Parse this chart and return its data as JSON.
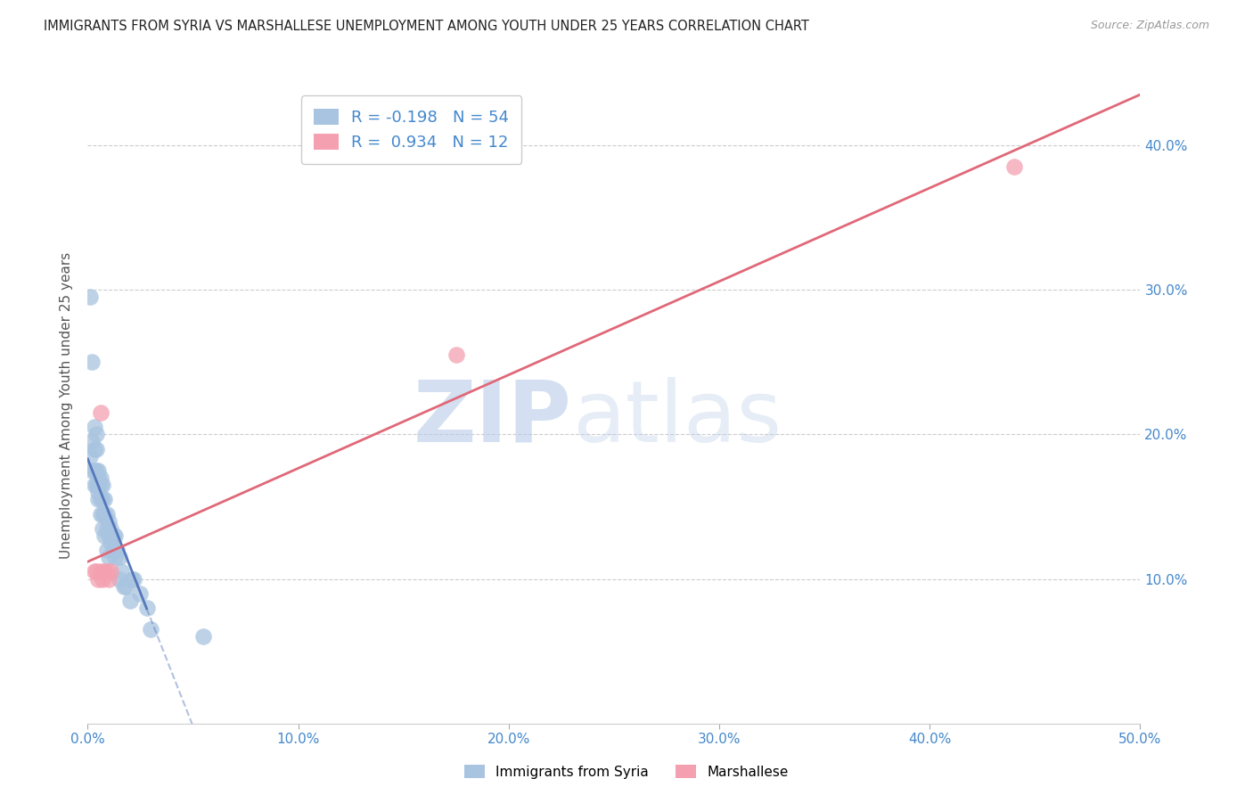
{
  "title": "IMMIGRANTS FROM SYRIA VS MARSHALLESE UNEMPLOYMENT AMONG YOUTH UNDER 25 YEARS CORRELATION CHART",
  "source": "Source: ZipAtlas.com",
  "ylabel": "Unemployment Among Youth under 25 years",
  "xlim": [
    0.0,
    0.5
  ],
  "ylim": [
    0.0,
    0.44
  ],
  "yticks": [
    0.1,
    0.2,
    0.3,
    0.4
  ],
  "xticks": [
    0.0,
    0.1,
    0.2,
    0.3,
    0.4,
    0.5
  ],
  "xtick_labels": [
    "0.0%",
    "10.0%",
    "20.0%",
    "30.0%",
    "40.0%",
    "50.0%"
  ],
  "right_ytick_labels": [
    "10.0%",
    "20.0%",
    "30.0%",
    "40.0%"
  ],
  "legend_R1": "-0.198",
  "legend_N1": "54",
  "legend_R2": "0.934",
  "legend_N2": "12",
  "syria_color": "#a8c4e0",
  "marshallese_color": "#f4a0b0",
  "syria_line_color": "#5577bb",
  "marshallese_line_color": "#e06878",
  "syria_x": [
    0.001,
    0.001,
    0.002,
    0.002,
    0.002,
    0.003,
    0.003,
    0.003,
    0.003,
    0.004,
    0.004,
    0.004,
    0.004,
    0.005,
    0.005,
    0.005,
    0.005,
    0.005,
    0.006,
    0.006,
    0.006,
    0.006,
    0.007,
    0.007,
    0.007,
    0.007,
    0.008,
    0.008,
    0.008,
    0.009,
    0.009,
    0.009,
    0.01,
    0.01,
    0.01,
    0.011,
    0.011,
    0.012,
    0.012,
    0.013,
    0.013,
    0.014,
    0.015,
    0.015,
    0.016,
    0.017,
    0.018,
    0.02,
    0.021,
    0.022,
    0.025,
    0.028,
    0.03,
    0.055
  ],
  "syria_y": [
    0.295,
    0.185,
    0.25,
    0.195,
    0.175,
    0.205,
    0.19,
    0.175,
    0.165,
    0.2,
    0.19,
    0.175,
    0.165,
    0.175,
    0.17,
    0.165,
    0.16,
    0.155,
    0.17,
    0.165,
    0.155,
    0.145,
    0.165,
    0.155,
    0.145,
    0.135,
    0.155,
    0.145,
    0.13,
    0.145,
    0.135,
    0.12,
    0.14,
    0.13,
    0.115,
    0.135,
    0.125,
    0.13,
    0.12,
    0.13,
    0.115,
    0.12,
    0.115,
    0.1,
    0.105,
    0.095,
    0.095,
    0.085,
    0.1,
    0.1,
    0.09,
    0.08,
    0.065,
    0.06
  ],
  "marshallese_x": [
    0.003,
    0.004,
    0.005,
    0.006,
    0.006,
    0.007,
    0.008,
    0.009,
    0.01,
    0.011,
    0.175,
    0.44
  ],
  "marshallese_y": [
    0.105,
    0.105,
    0.1,
    0.105,
    0.215,
    0.1,
    0.105,
    0.105,
    0.1,
    0.105,
    0.255,
    0.385
  ],
  "background_color": "#ffffff",
  "grid_color": "#cccccc",
  "syria_line_x": [
    0.0,
    0.028,
    0.5
  ],
  "syria_line_solid_end": 0.028
}
